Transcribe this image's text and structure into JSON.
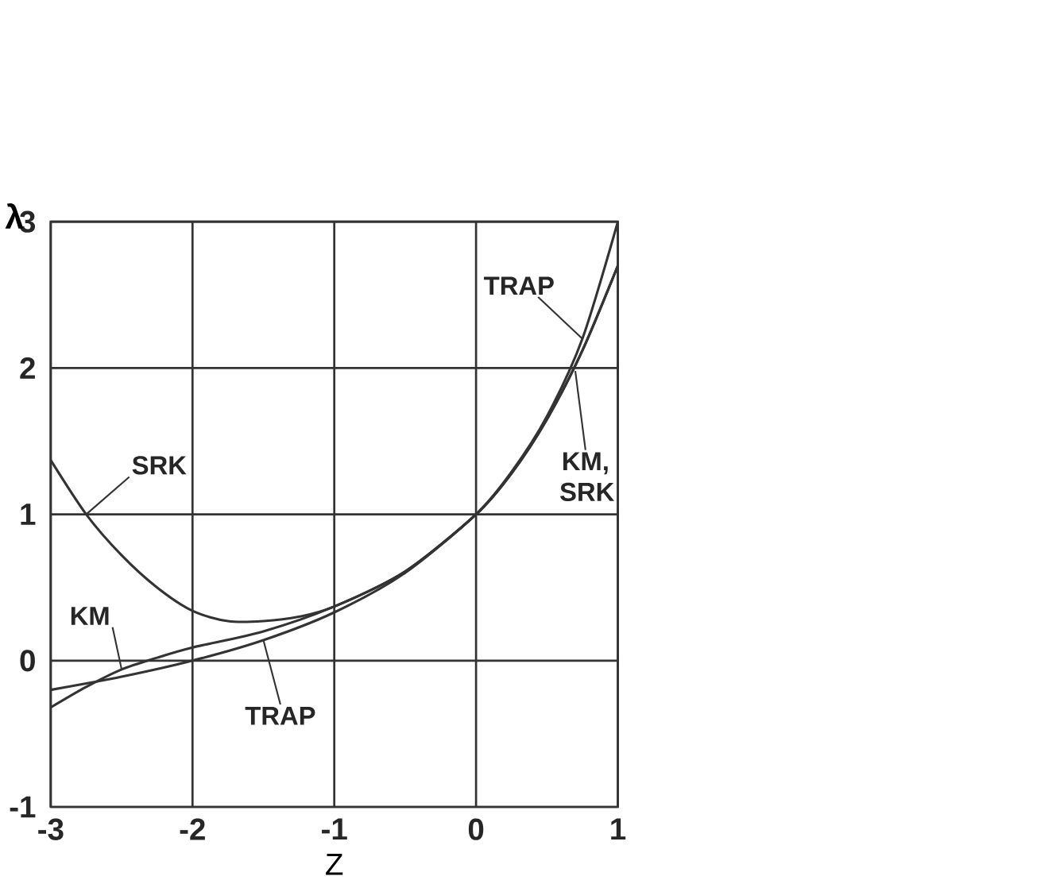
{
  "chart_data": {
    "type": "line",
    "xlabel": "Z",
    "ylabel": "λ",
    "xlim": [
      -3,
      1
    ],
    "ylim": [
      -1,
      3
    ],
    "xticks": [
      -3,
      -2,
      -1,
      0,
      1
    ],
    "yticks": [
      -1,
      0,
      1,
      2,
      3
    ],
    "grid": true,
    "series": [
      {
        "name": "SRK",
        "color": "#333333",
        "x": [
          -3,
          -2.75,
          -2.5,
          -2.25,
          -2,
          -1.75,
          -1.5,
          -1.25,
          -1,
          -0.5,
          0,
          0.25,
          0.5,
          0.75,
          1
        ],
        "values": [
          1.37,
          1.0,
          0.72,
          0.5,
          0.34,
          0.27,
          0.27,
          0.3,
          0.37,
          0.61,
          1,
          1.28,
          1.65,
          2.12,
          2.7
        ]
      },
      {
        "name": "KM",
        "color": "#333333",
        "x": [
          -3,
          -2.75,
          -2.5,
          -2.25,
          -2,
          -1.5,
          -1,
          -0.5,
          0,
          0.25,
          0.5,
          0.75,
          1
        ],
        "values": [
          -0.32,
          -0.18,
          -0.06,
          0.02,
          0.09,
          0.2,
          0.37,
          0.61,
          1,
          1.28,
          1.65,
          2.12,
          2.7
        ]
      },
      {
        "name": "TRAP",
        "color": "#333333",
        "x": [
          -3,
          -2.5,
          -2,
          -1.5,
          -1,
          -0.5,
          0,
          0.25,
          0.5,
          0.75,
          1
        ],
        "values": [
          -0.2,
          -0.11,
          0,
          0.14,
          0.33,
          0.6,
          1,
          1.29,
          1.67,
          2.2,
          3
        ]
      }
    ],
    "annotations": [
      {
        "text": "TRAP",
        "x": 0.75,
        "y": 2.2
      },
      {
        "text": "KM, SRK",
        "x": 0.7,
        "y": 1.98
      }
    ]
  }
}
